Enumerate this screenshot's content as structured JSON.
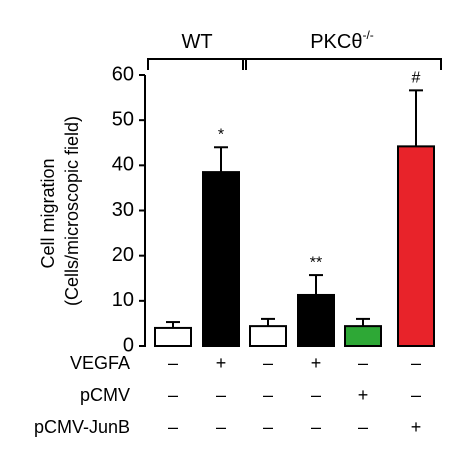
{
  "chart_data": {
    "type": "bar",
    "y_label_lines": [
      "Cell migration",
      "(Cells/microscopic field)"
    ],
    "values": [
      4.0,
      38.5,
      4.4,
      11.3,
      4.4,
      44.2
    ],
    "errors": [
      1.3,
      5.5,
      1.6,
      4.4,
      1.6,
      12.4
    ],
    "colors": [
      "#ffffff",
      "#000000",
      "#ffffff",
      "#000000",
      "#2ea836",
      "#e8232a"
    ],
    "annotations": [
      null,
      "*",
      null,
      "**",
      null,
      "#"
    ],
    "ylim": [
      0,
      60
    ],
    "yticks": [
      0,
      10,
      20,
      30,
      40,
      50,
      60
    ],
    "groups": [
      {
        "label": "WT",
        "from": 0,
        "to": 1
      },
      {
        "label": "PKCθ",
        "sup": "-/-",
        "from": 2,
        "to": 5
      }
    ],
    "conditions": [
      {
        "name": "VEGFA",
        "values": [
          "–",
          "+",
          "–",
          "+",
          "–",
          "–"
        ]
      },
      {
        "name": "pCMV",
        "values": [
          "–",
          "–",
          "–",
          "–",
          "+",
          "–"
        ]
      },
      {
        "name": "pCMV-JunB",
        "values": [
          "–",
          "–",
          "–",
          "–",
          "–",
          "+"
        ]
      }
    ]
  }
}
